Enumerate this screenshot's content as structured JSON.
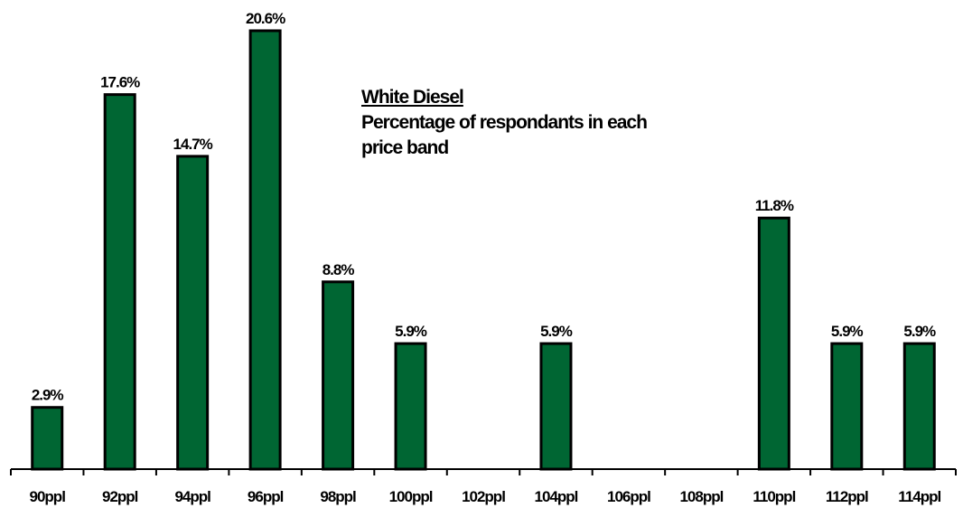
{
  "chart_data": {
    "type": "bar",
    "title": "White Diesel",
    "subtitle": "Percentage of respondants in each price band",
    "categories": [
      "90ppl",
      "92ppl",
      "94ppl",
      "96ppl",
      "98ppl",
      "100ppl",
      "102ppl",
      "104ppl",
      "106ppl",
      "108ppl",
      "110ppl",
      "112ppl",
      "114ppl"
    ],
    "values": [
      2.9,
      17.6,
      14.7,
      20.6,
      8.8,
      5.9,
      null,
      5.9,
      null,
      null,
      11.8,
      5.9,
      5.9
    ],
    "data_labels": [
      "2.9%",
      "17.6%",
      "14.7%",
      "20.6%",
      "8.8%",
      "5.9%",
      "",
      "5.9%",
      "",
      "",
      "11.8%",
      "5.9%",
      "5.9%"
    ],
    "xlabel": "",
    "ylabel": "",
    "ylim": [
      0,
      20.6
    ],
    "grid": false,
    "bar_color": "#006633"
  }
}
